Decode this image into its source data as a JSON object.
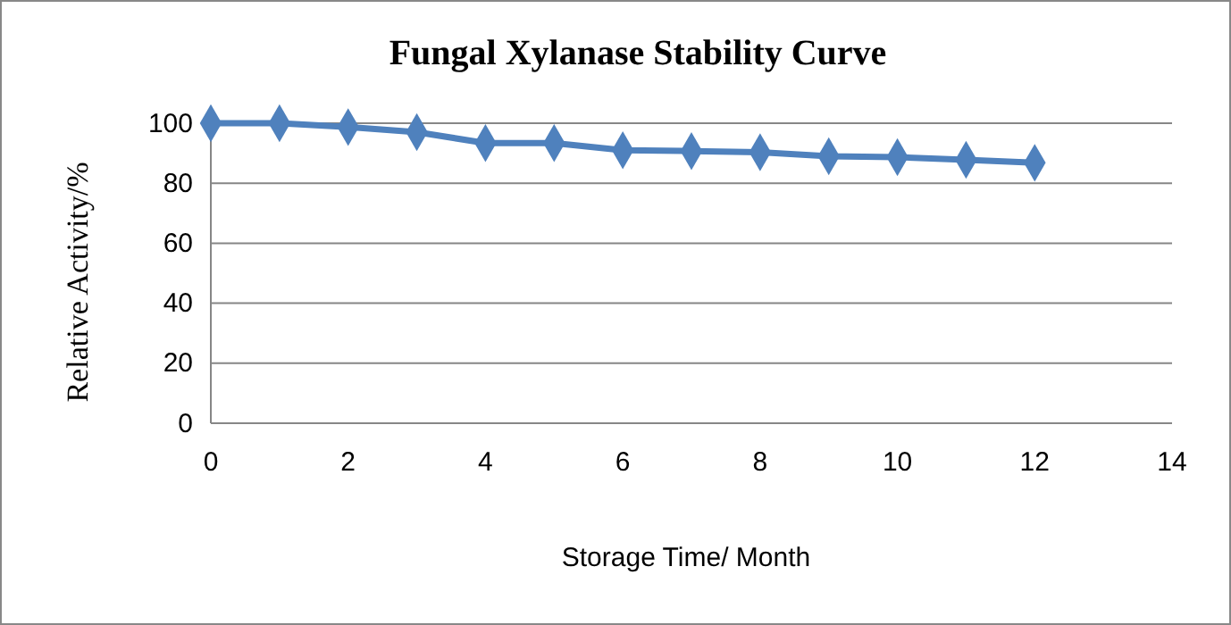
{
  "chart_data": {
    "type": "line",
    "title": "Fungal Xylanase Stability Curve",
    "xlabel": "Storage Time/ Month",
    "ylabel": "Relative Activity/%",
    "x": [
      0,
      1,
      2,
      3,
      4,
      5,
      6,
      7,
      8,
      9,
      10,
      11,
      12
    ],
    "series": [
      {
        "color": "#4f81bd",
        "values": [
          100,
          100,
          98.7,
          97,
          93.4,
          93.4,
          91,
          90.7,
          90.3,
          89,
          88.7,
          87.8,
          86.8
        ]
      }
    ],
    "xlim": [
      0,
      14
    ],
    "xticks": [
      0,
      2,
      4,
      6,
      8,
      10,
      12,
      14
    ],
    "ylim": [
      0,
      100
    ],
    "yticks": [
      0,
      20,
      40,
      60,
      80,
      100
    ],
    "grid": "y",
    "marker": "diamond",
    "line_style": "solid"
  }
}
